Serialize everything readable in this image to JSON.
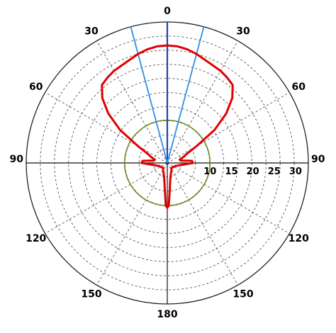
{
  "chart_data": {
    "type": "polar-line",
    "title": "",
    "angle_unit": "degrees",
    "angle_direction": "clockwise-symmetric",
    "angle_tick_labels": [
      {
        "angle": 0,
        "text": "0"
      },
      {
        "angle": 30,
        "text": "30"
      },
      {
        "angle": -30,
        "text": "30"
      },
      {
        "angle": 60,
        "text": "60"
      },
      {
        "angle": -60,
        "text": "60"
      },
      {
        "angle": 90,
        "text": "90"
      },
      {
        "angle": -90,
        "text": "90"
      },
      {
        "angle": 120,
        "text": "120"
      },
      {
        "angle": -120,
        "text": "120"
      },
      {
        "angle": 150,
        "text": "150"
      },
      {
        "angle": -150,
        "text": "150"
      },
      {
        "angle": 180,
        "text": "180"
      }
    ],
    "radial_range": [
      0,
      33
    ],
    "radial_gridlines": [
      3.3,
      6.6,
      9.9,
      13.2,
      16.5,
      19.8,
      23.1,
      26.4,
      29.7,
      33
    ],
    "radial_tick_labels": [
      {
        "value": 10,
        "text": "10"
      },
      {
        "value": 15,
        "text": "15"
      },
      {
        "value": 20,
        "text": "20"
      },
      {
        "value": 25,
        "text": "25"
      },
      {
        "value": 30,
        "text": "30"
      }
    ],
    "grid": true,
    "colors": {
      "pattern": "#e00000",
      "reference_circle": "#6b8e23",
      "axis_main": "#1f3fbf",
      "axis_beam": "#2f8fe0",
      "grid": "#555555"
    },
    "reference_circle_radius": 10,
    "main_axis_angle": 0,
    "beamwidth_lines": [
      -15,
      15
    ],
    "pattern_points": [
      [
        0,
        27.5
      ],
      [
        5,
        27.4
      ],
      [
        10,
        27.0
      ],
      [
        15,
        26.4
      ],
      [
        20,
        25.7
      ],
      [
        25,
        25.2
      ],
      [
        30,
        24.9
      ],
      [
        35,
        24.4
      ],
      [
        40,
        23.8
      ],
      [
        45,
        21.5
      ],
      [
        50,
        18.0
      ],
      [
        55,
        13.5
      ],
      [
        60,
        8.0
      ],
      [
        65,
        5.0
      ],
      [
        70,
        4.0
      ],
      [
        75,
        3.0
      ],
      [
        80,
        3.2
      ],
      [
        85,
        5.8
      ],
      [
        90,
        6.0
      ],
      [
        95,
        4.0
      ],
      [
        100,
        3.0
      ],
      [
        105,
        2.5
      ],
      [
        110,
        2.0
      ],
      [
        120,
        1.8
      ],
      [
        130,
        1.6
      ],
      [
        140,
        1.5
      ],
      [
        150,
        2.0
      ],
      [
        160,
        2.5
      ],
      [
        170,
        4.0
      ],
      [
        175,
        6.5
      ],
      [
        178,
        10.0
      ],
      [
        180,
        10.5
      ],
      [
        182,
        10.0
      ],
      [
        185,
        6.5
      ],
      [
        190,
        4.0
      ],
      [
        200,
        2.5
      ],
      [
        210,
        2.0
      ],
      [
        220,
        1.5
      ],
      [
        230,
        1.6
      ],
      [
        240,
        1.8
      ],
      [
        250,
        2.0
      ],
      [
        255,
        2.5
      ],
      [
        260,
        3.0
      ],
      [
        265,
        4.0
      ],
      [
        270,
        6.0
      ],
      [
        275,
        5.8
      ],
      [
        280,
        3.2
      ],
      [
        285,
        3.0
      ],
      [
        290,
        4.0
      ],
      [
        295,
        5.0
      ],
      [
        300,
        8.0
      ],
      [
        305,
        13.5
      ],
      [
        310,
        18.0
      ],
      [
        315,
        21.5
      ],
      [
        320,
        23.8
      ],
      [
        325,
        24.4
      ],
      [
        330,
        24.9
      ],
      [
        335,
        25.2
      ],
      [
        340,
        25.7
      ],
      [
        345,
        26.4
      ],
      [
        350,
        27.0
      ],
      [
        355,
        27.4
      ],
      [
        360,
        27.5
      ]
    ]
  }
}
